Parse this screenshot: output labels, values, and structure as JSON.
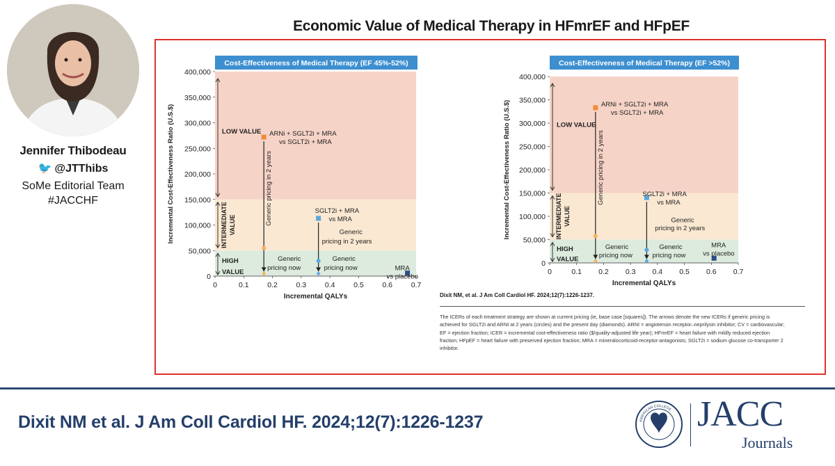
{
  "presenter": {
    "name": "Jennifer Thibodeau",
    "handle": "@JTThibs",
    "team": [
      "SoMe Editorial Team",
      "#JACCHF"
    ]
  },
  "slide_title": "Economic Value of Medical Therapy in HFmrEF and HFpEF",
  "citation": "Dixit NM, et al. J Am Coll Cardiol HF. 2024;12(7):1226-1237.",
  "caption": "The ICERs of each treatment strategy are shown at current pricing (ie, base case [squares]). The arrows denote the new ICERs if generic pricing is achieved for SGLT2i and ARNI at 2 years (circles) and the present day (diamonds). ARNI = angiotensin receptor–neprilysin inhibitor; CV = cardiovascular; EF = ejection fraction; ICER = incremental cost-effectiveness ratio ($/quality-adjusted life year); HFmrEF = heart failure with mildly reduced ejection fraction; HFpEF = heart failure with preserved ejection fraction; MRA = mineralocorticoid-receptor-antagonists; SGLT2i = sodium glucose co-transporter 2 inhibitor.",
  "footer": {
    "citation": "Dixit NM et al. J Am Coll Cardiol HF. 2024;12(7):1226-1237",
    "brand": "JACC",
    "brand_sub": "Journals",
    "seal_text": "AMERICAN COLLEGE OF CARDIOLOGY"
  },
  "colors": {
    "low_value": "#f6d3c7",
    "intermediate_value": "#fbe8d2",
    "high_value": "#dcebdd",
    "title_bar": "#3d8fd0",
    "base_case_orange": "#f08b3a",
    "base_case_blue": "#5ba7dd",
    "base_case_navy": "#2f4b8c",
    "generic_2yr_orange": "#f5b15a",
    "generic_now": "#f5b15a",
    "frame_red": "#e0302a",
    "footer_navy": "#243f6a"
  },
  "chart_data": [
    {
      "type": "scatter",
      "title": "Cost-Effectiveness of Medical Therapy (EF 45%-52%)",
      "xlabel": "Incremental QALYs",
      "ylabel": "Incremental Cost-Effectiveness Ratio (U.S.$)",
      "xlim": [
        0,
        0.7
      ],
      "ylim": [
        0,
        400000
      ],
      "xticks": [
        0,
        0.1,
        0.2,
        0.3,
        0.4,
        0.5,
        0.6,
        0.7
      ],
      "xtick_labels": [
        "0",
        "0.1",
        "0.2",
        "0.3",
        "0.4",
        "0.5",
        "0.6",
        "0.7"
      ],
      "yticks": [
        0,
        50000,
        100000,
        150000,
        200000,
        250000,
        300000,
        350000,
        400000
      ],
      "ytick_labels": [
        "0",
        "50,000",
        "100,000",
        "150,000",
        "200,000",
        "250,000",
        "300,000",
        "350,000",
        "400,000"
      ],
      "bands": [
        {
          "label": "LOW VALUE",
          "from": 150000,
          "to": 400000
        },
        {
          "label": "INTERMEDIATE VALUE",
          "from": 50000,
          "to": 150000
        },
        {
          "label": "HIGH VALUE",
          "from": 0,
          "to": 50000
        }
      ],
      "points": [
        {
          "label": "ARNi + SGLT2i + MRA vs SGLT2i + MRA",
          "x": 0.17,
          "base": 272000,
          "generic_2yr": 55000,
          "generic_now": 5000
        },
        {
          "label": "SGLT2i + MRA vs MRA",
          "x": 0.36,
          "base": 113000,
          "generic_2yr": 30000,
          "generic_now": 5000
        },
        {
          "label": "MRA vs placebo",
          "x": 0.67,
          "base": 6000
        }
      ],
      "annotations": [
        "Generic pricing in 2 years",
        "Generic pricing now",
        "Generic pricing in 2 years",
        "Generic pricing now"
      ]
    },
    {
      "type": "scatter",
      "title": "Cost-Effectiveness of Medical Therapy (EF >52%)",
      "xlabel": "Incremental QALYs",
      "ylabel": "Incremental Cost-Effectiveness Ratio (U.S.$)",
      "xlim": [
        0,
        0.7
      ],
      "ylim": [
        0,
        400000
      ],
      "xticks": [
        0,
        0.1,
        0.2,
        0.3,
        0.4,
        0.5,
        0.6,
        0.7
      ],
      "xtick_labels": [
        "0",
        "0.1",
        "0.2",
        "0.3",
        "0.4",
        "0.5",
        "0.6",
        "0.7"
      ],
      "yticks": [
        0,
        50000,
        100000,
        150000,
        200000,
        250000,
        300000,
        350000,
        400000
      ],
      "ytick_labels": [
        "0",
        "50,000",
        "100,000",
        "150,000",
        "200,000",
        "250,000",
        "300,000",
        "350,000",
        "400,000"
      ],
      "bands": [
        {
          "label": "LOW VALUE",
          "from": 150000,
          "to": 400000
        },
        {
          "label": "INTERMEDIATE VALUE",
          "from": 50000,
          "to": 150000
        },
        {
          "label": "HIGH VALUE",
          "from": 0,
          "to": 50000
        }
      ],
      "points": [
        {
          "label": "ARNi + SGLT2i + MRA vs SGLT2i + MRA",
          "x": 0.17,
          "base": 333000,
          "generic_2yr": 58000,
          "generic_now": 4000
        },
        {
          "label": "SGLT2i + MRA vs MRA",
          "x": 0.36,
          "base": 140000,
          "generic_2yr": 28000,
          "generic_now": 4000
        },
        {
          "label": "MRA vs placebo",
          "x": 0.61,
          "base": 10000
        }
      ],
      "annotations": [
        "Generic pricing in 2 years",
        "Generic pricing now",
        "Generic pricing in 2 years",
        "Generic pricing now"
      ]
    }
  ]
}
